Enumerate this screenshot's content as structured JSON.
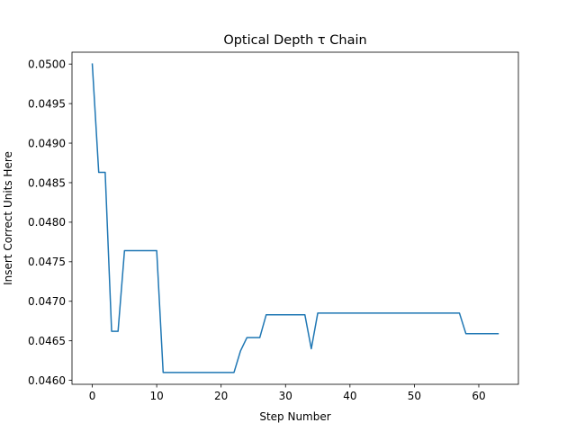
{
  "chart_data": {
    "type": "line",
    "title": "Optical Depth τ Chain",
    "xlabel": "Step Number",
    "ylabel": "Insert Correct Units Here",
    "xlim": [
      -3.15,
      66.15
    ],
    "ylim": [
      0.04595,
      0.05015
    ],
    "xticks": [
      0,
      10,
      20,
      30,
      40,
      50,
      60
    ],
    "yticks": [
      0.046,
      0.0465,
      0.047,
      0.0475,
      0.048,
      0.0485,
      0.049,
      0.0495,
      0.05
    ],
    "ytick_labels": [
      "0.0460",
      "0.0465",
      "0.0470",
      "0.0475",
      "0.0480",
      "0.0485",
      "0.0490",
      "0.0495",
      "0.0500"
    ],
    "grid": false,
    "series": [
      {
        "color": "#1f77b4",
        "x": [
          0,
          1,
          2,
          3,
          4,
          5,
          6,
          7,
          8,
          9,
          10,
          11,
          12,
          13,
          14,
          15,
          16,
          17,
          18,
          19,
          20,
          21,
          22,
          23,
          24,
          25,
          26,
          27,
          28,
          29,
          30,
          31,
          32,
          33,
          34,
          35,
          36,
          37,
          38,
          39,
          40,
          41,
          42,
          43,
          44,
          45,
          46,
          47,
          48,
          49,
          50,
          51,
          52,
          53,
          54,
          55,
          56,
          57,
          58,
          59,
          60,
          61,
          62,
          63
        ],
        "y": [
          0.05,
          0.04863,
          0.04863,
          0.04662,
          0.04662,
          0.04764,
          0.04764,
          0.04764,
          0.04764,
          0.04764,
          0.04764,
          0.0461,
          0.0461,
          0.0461,
          0.0461,
          0.0461,
          0.0461,
          0.0461,
          0.0461,
          0.0461,
          0.0461,
          0.0461,
          0.0461,
          0.04637,
          0.04654,
          0.04654,
          0.04654,
          0.04683,
          0.04683,
          0.04683,
          0.04683,
          0.04683,
          0.04683,
          0.04683,
          0.0464,
          0.04685,
          0.04685,
          0.04685,
          0.04685,
          0.04685,
          0.04685,
          0.04685,
          0.04685,
          0.04685,
          0.04685,
          0.04685,
          0.04685,
          0.04685,
          0.04685,
          0.04685,
          0.04685,
          0.04685,
          0.04685,
          0.04685,
          0.04685,
          0.04685,
          0.04685,
          0.04685,
          0.04659,
          0.04659,
          0.04659,
          0.04659,
          0.04659,
          0.04659
        ]
      }
    ]
  }
}
